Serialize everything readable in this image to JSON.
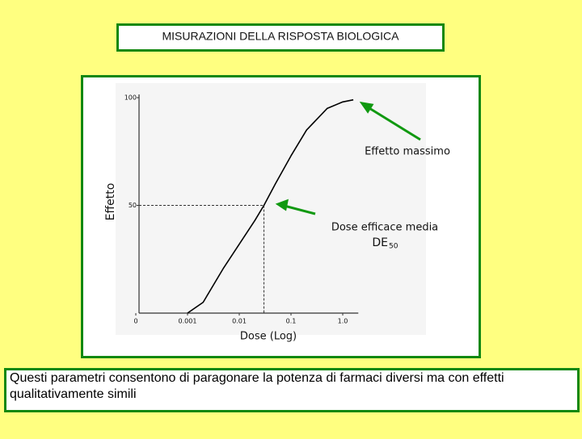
{
  "chart_data": {
    "type": "line",
    "title": "MISURAZIONI DELLA RISPOSTA BIOLOGICA",
    "caption": "Questi parametri consentono di paragonare la potenza di farmaci diversi ma con effetti qualitativamente simili",
    "x_label": "Dose (Log)",
    "y_label": "Effetto",
    "x_log": true,
    "x": [
      0.001,
      0.002,
      0.005,
      0.01,
      0.02,
      0.03,
      0.05,
      0.1,
      0.2,
      0.5,
      1.0,
      1.6
    ],
    "series": [
      {
        "color": "#000000",
        "values": [
          0,
          5,
          21,
          32,
          43,
          50,
          60,
          73,
          85,
          95,
          98,
          99
        ]
      }
    ],
    "xlim": [
      0.0001,
      2
    ],
    "ylim": [
      0,
      100
    ],
    "xticks": [
      {
        "value": 0.0001,
        "label": "0"
      },
      0.001,
      0.01,
      {
        "value": 0.1,
        "label": "0.1"
      },
      {
        "value": 1,
        "label": "1.0"
      }
    ],
    "yticks": [
      50,
      100
    ],
    "ed50": {
      "x": 0.03,
      "y": 50
    },
    "annotations": [
      "Effetto massimo",
      "Dose efficace media",
      "DE",
      "50"
    ]
  }
}
